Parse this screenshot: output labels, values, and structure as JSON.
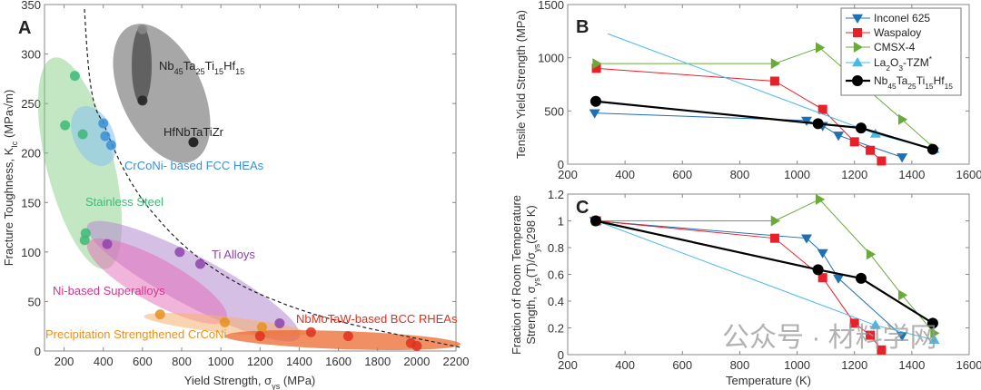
{
  "chart_data": [
    {
      "panel": "A",
      "type": "scatter",
      "xlabel": [
        {
          "t": "Yield Strength, σ"
        },
        {
          "t": "ys",
          "sub": true
        },
        {
          "t": " (MPa)"
        }
      ],
      "ylabel": [
        {
          "t": "Fracture Toughness, K"
        },
        {
          "t": "Ic",
          "sub": true
        },
        {
          "t": " (MPa√m)"
        }
      ],
      "xlim": [
        100,
        2200
      ],
      "ylim": [
        0,
        350
      ],
      "xticks": [
        200,
        400,
        600,
        800,
        1000,
        1200,
        1400,
        1600,
        1800,
        2000,
        2200
      ],
      "yticks": [
        0,
        50,
        100,
        150,
        200,
        250,
        300,
        350
      ],
      "grid": false,
      "groups": [
        {
          "name": [
            {
              "t": "Stainless Steel"
            }
          ],
          "color": "#3cb878",
          "points": [
            [
              255,
              278
            ],
            [
              205,
              228
            ],
            [
              295,
              219
            ],
            [
              310,
              119
            ],
            [
              305,
              112
            ]
          ]
        },
        {
          "name": [
            {
              "t": "CrCoNi- based FCC HEAs"
            }
          ],
          "color": "#3a8fd8",
          "points": [
            [
              400,
              230
            ],
            [
              410,
              217
            ],
            [
              440,
              208
            ]
          ]
        },
        {
          "name": [
            {
              "t": "Nb"
            },
            {
              "t": "45",
              "sub": true
            },
            {
              "t": "Ta"
            },
            {
              "t": "25",
              "sub": true
            },
            {
              "t": "Ti"
            },
            {
              "t": "15",
              "sub": true
            },
            {
              "t": "Hf"
            },
            {
              "t": "15",
              "sub": true
            }
          ],
          "color": "#222222",
          "points": [
            [
              600,
              325
            ],
            [
              600,
              253
            ]
          ]
        },
        {
          "name": [
            {
              "t": "HfNbTaTiZr"
            }
          ],
          "color": "#111111",
          "points": [
            [
              860,
              211
            ]
          ]
        },
        {
          "name": [
            {
              "t": "Ti Alloys"
            }
          ],
          "color": "#8e44ad",
          "points": [
            [
              420,
              108
            ],
            [
              790,
              100
            ],
            [
              895,
              88
            ],
            [
              1300,
              28
            ]
          ]
        },
        {
          "name": [
            {
              "t": "Ni-based Superalloys"
            }
          ],
          "color": "#d6338f",
          "points": []
        },
        {
          "name": [
            {
              "t": "Precipitation Strengthened CrCoNi"
            }
          ],
          "color": "#e8901e",
          "points": [
            [
              690,
              37
            ],
            [
              1020,
              29
            ],
            [
              1210,
              24
            ]
          ]
        },
        {
          "name": [
            {
              "t": "NbMoTaW-based BCC RHEAs"
            }
          ],
          "color": "#e0301e",
          "points": [
            [
              1200,
              15
            ],
            [
              1460,
              19
            ],
            [
              1650,
              15
            ],
            [
              1970,
              8
            ],
            [
              2000,
              5
            ]
          ]
        }
      ]
    },
    {
      "panel": "B",
      "type": "line",
      "xlabel": [],
      "ylabel": [
        {
          "t": "Tensile Yield Strength (MPa)"
        }
      ],
      "xlim": [
        200,
        1600
      ],
      "ylim": [
        0,
        1500
      ],
      "xticks": [
        200,
        400,
        600,
        800,
        1000,
        1200,
        1400,
        1600
      ],
      "yticks": [
        0,
        500,
        1000,
        1500
      ],
      "legend": "top-right",
      "series": [
        {
          "name": [
            {
              "t": "Inconel 625"
            }
          ],
          "color": "#1f6fb5",
          "marker": "triangle-down",
          "points": [
            [
              294,
              480
            ],
            [
              1033,
              410
            ],
            [
              1089,
              360
            ],
            [
              1144,
              270
            ],
            [
              1366,
              65
            ]
          ]
        },
        {
          "name": [
            {
              "t": "Waspaloy"
            }
          ],
          "color": "#e8202a",
          "marker": "square",
          "points": [
            [
              300,
              900
            ],
            [
              922,
              780
            ],
            [
              1089,
              515
            ],
            [
              1200,
              210
            ],
            [
              1255,
              130
            ],
            [
              1294,
              30
            ]
          ]
        },
        {
          "name": [
            {
              "t": "CMSX-4"
            }
          ],
          "color": "#6aaa3a",
          "marker": "triangle-right",
          "points": [
            [
              300,
              945
            ],
            [
              922,
              945
            ],
            [
              1078,
              1095
            ],
            [
              1366,
              420
            ],
            [
              1478,
              150
            ]
          ]
        },
        {
          "name": [
            {
              "t": "La"
            },
            {
              "t": "2",
              "sub": true
            },
            {
              "t": "O"
            },
            {
              "t": "3",
              "sub": true
            },
            {
              "t": "-TZM"
            },
            {
              "t": "*",
              "sup": true
            }
          ],
          "color": "#48b8e8",
          "marker": "triangle-up",
          "points": [
            [
              340,
              1225
            ],
            [
              1273,
              285
            ],
            [
              1478,
              140
            ]
          ]
        },
        {
          "name": [
            {
              "t": "Nb"
            },
            {
              "t": "45",
              "sub": true
            },
            {
              "t": "Ta"
            },
            {
              "t": "25",
              "sub": true
            },
            {
              "t": "Ti"
            },
            {
              "t": "15",
              "sub": true
            },
            {
              "t": "Hf"
            },
            {
              "t": "15",
              "sub": true
            }
          ],
          "color": "#000000",
          "marker": "circle",
          "points": [
            [
              298,
              590
            ],
            [
              1073,
              380
            ],
            [
              1223,
              340
            ],
            [
              1473,
              140
            ]
          ]
        }
      ]
    },
    {
      "panel": "C",
      "type": "line",
      "xlabel": [
        {
          "t": "Temperature (K)"
        }
      ],
      "ylabel": [
        {
          "t": "Fraction of Room Temperature"
        }
      ],
      "ylabel2": [
        {
          "t": "Strength, σ"
        },
        {
          "t": "ys",
          "sub": true
        },
        {
          "t": "(T)/σ"
        },
        {
          "t": "ys",
          "sub": true
        },
        {
          "t": "(298 K)"
        }
      ],
      "xlim": [
        200,
        1600
      ],
      "ylim": [
        0,
        1.2
      ],
      "xticks": [
        200,
        400,
        600,
        800,
        1000,
        1200,
        1400,
        1600
      ],
      "yticks": [
        0,
        0.2,
        0.4,
        0.6,
        0.8,
        1,
        1.2
      ],
      "series": [
        {
          "name": "Inconel 625",
          "color": "#1f6fb5",
          "marker": "triangle-down",
          "points": [
            [
              294,
              1.0
            ],
            [
              1033,
              0.87
            ],
            [
              1089,
              0.76
            ],
            [
              1144,
              0.57
            ],
            [
              1366,
              0.14
            ]
          ]
        },
        {
          "name": "Waspaloy",
          "color": "#e8202a",
          "marker": "square",
          "points": [
            [
              300,
              1.0
            ],
            [
              922,
              0.87
            ],
            [
              1089,
              0.575
            ],
            [
              1200,
              0.235
            ],
            [
              1255,
              0.145
            ],
            [
              1294,
              0.035
            ]
          ]
        },
        {
          "name": "CMSX-4",
          "color": "#6aaa3a",
          "marker": "triangle-right",
          "points": [
            [
              300,
              1.0
            ],
            [
              922,
              1.0
            ],
            [
              1078,
              1.16
            ],
            [
              1255,
              0.75
            ],
            [
              1366,
              0.445
            ],
            [
              1478,
              0.16
            ]
          ]
        },
        {
          "name": "La2O3-TZM",
          "color": "#48b8e8",
          "marker": "triangle-up",
          "points": [
            [
              300,
              1.0
            ],
            [
              1273,
              0.22
            ],
            [
              1478,
              0.11
            ]
          ]
        },
        {
          "name": "Nb45Ta25Ti15Hf15",
          "color": "#000000",
          "marker": "circle",
          "points": [
            [
              298,
              1.0
            ],
            [
              1073,
              0.635
            ],
            [
              1223,
              0.57
            ],
            [
              1473,
              0.235
            ]
          ]
        }
      ]
    }
  ],
  "watermark": "公众号 · 材料学网"
}
